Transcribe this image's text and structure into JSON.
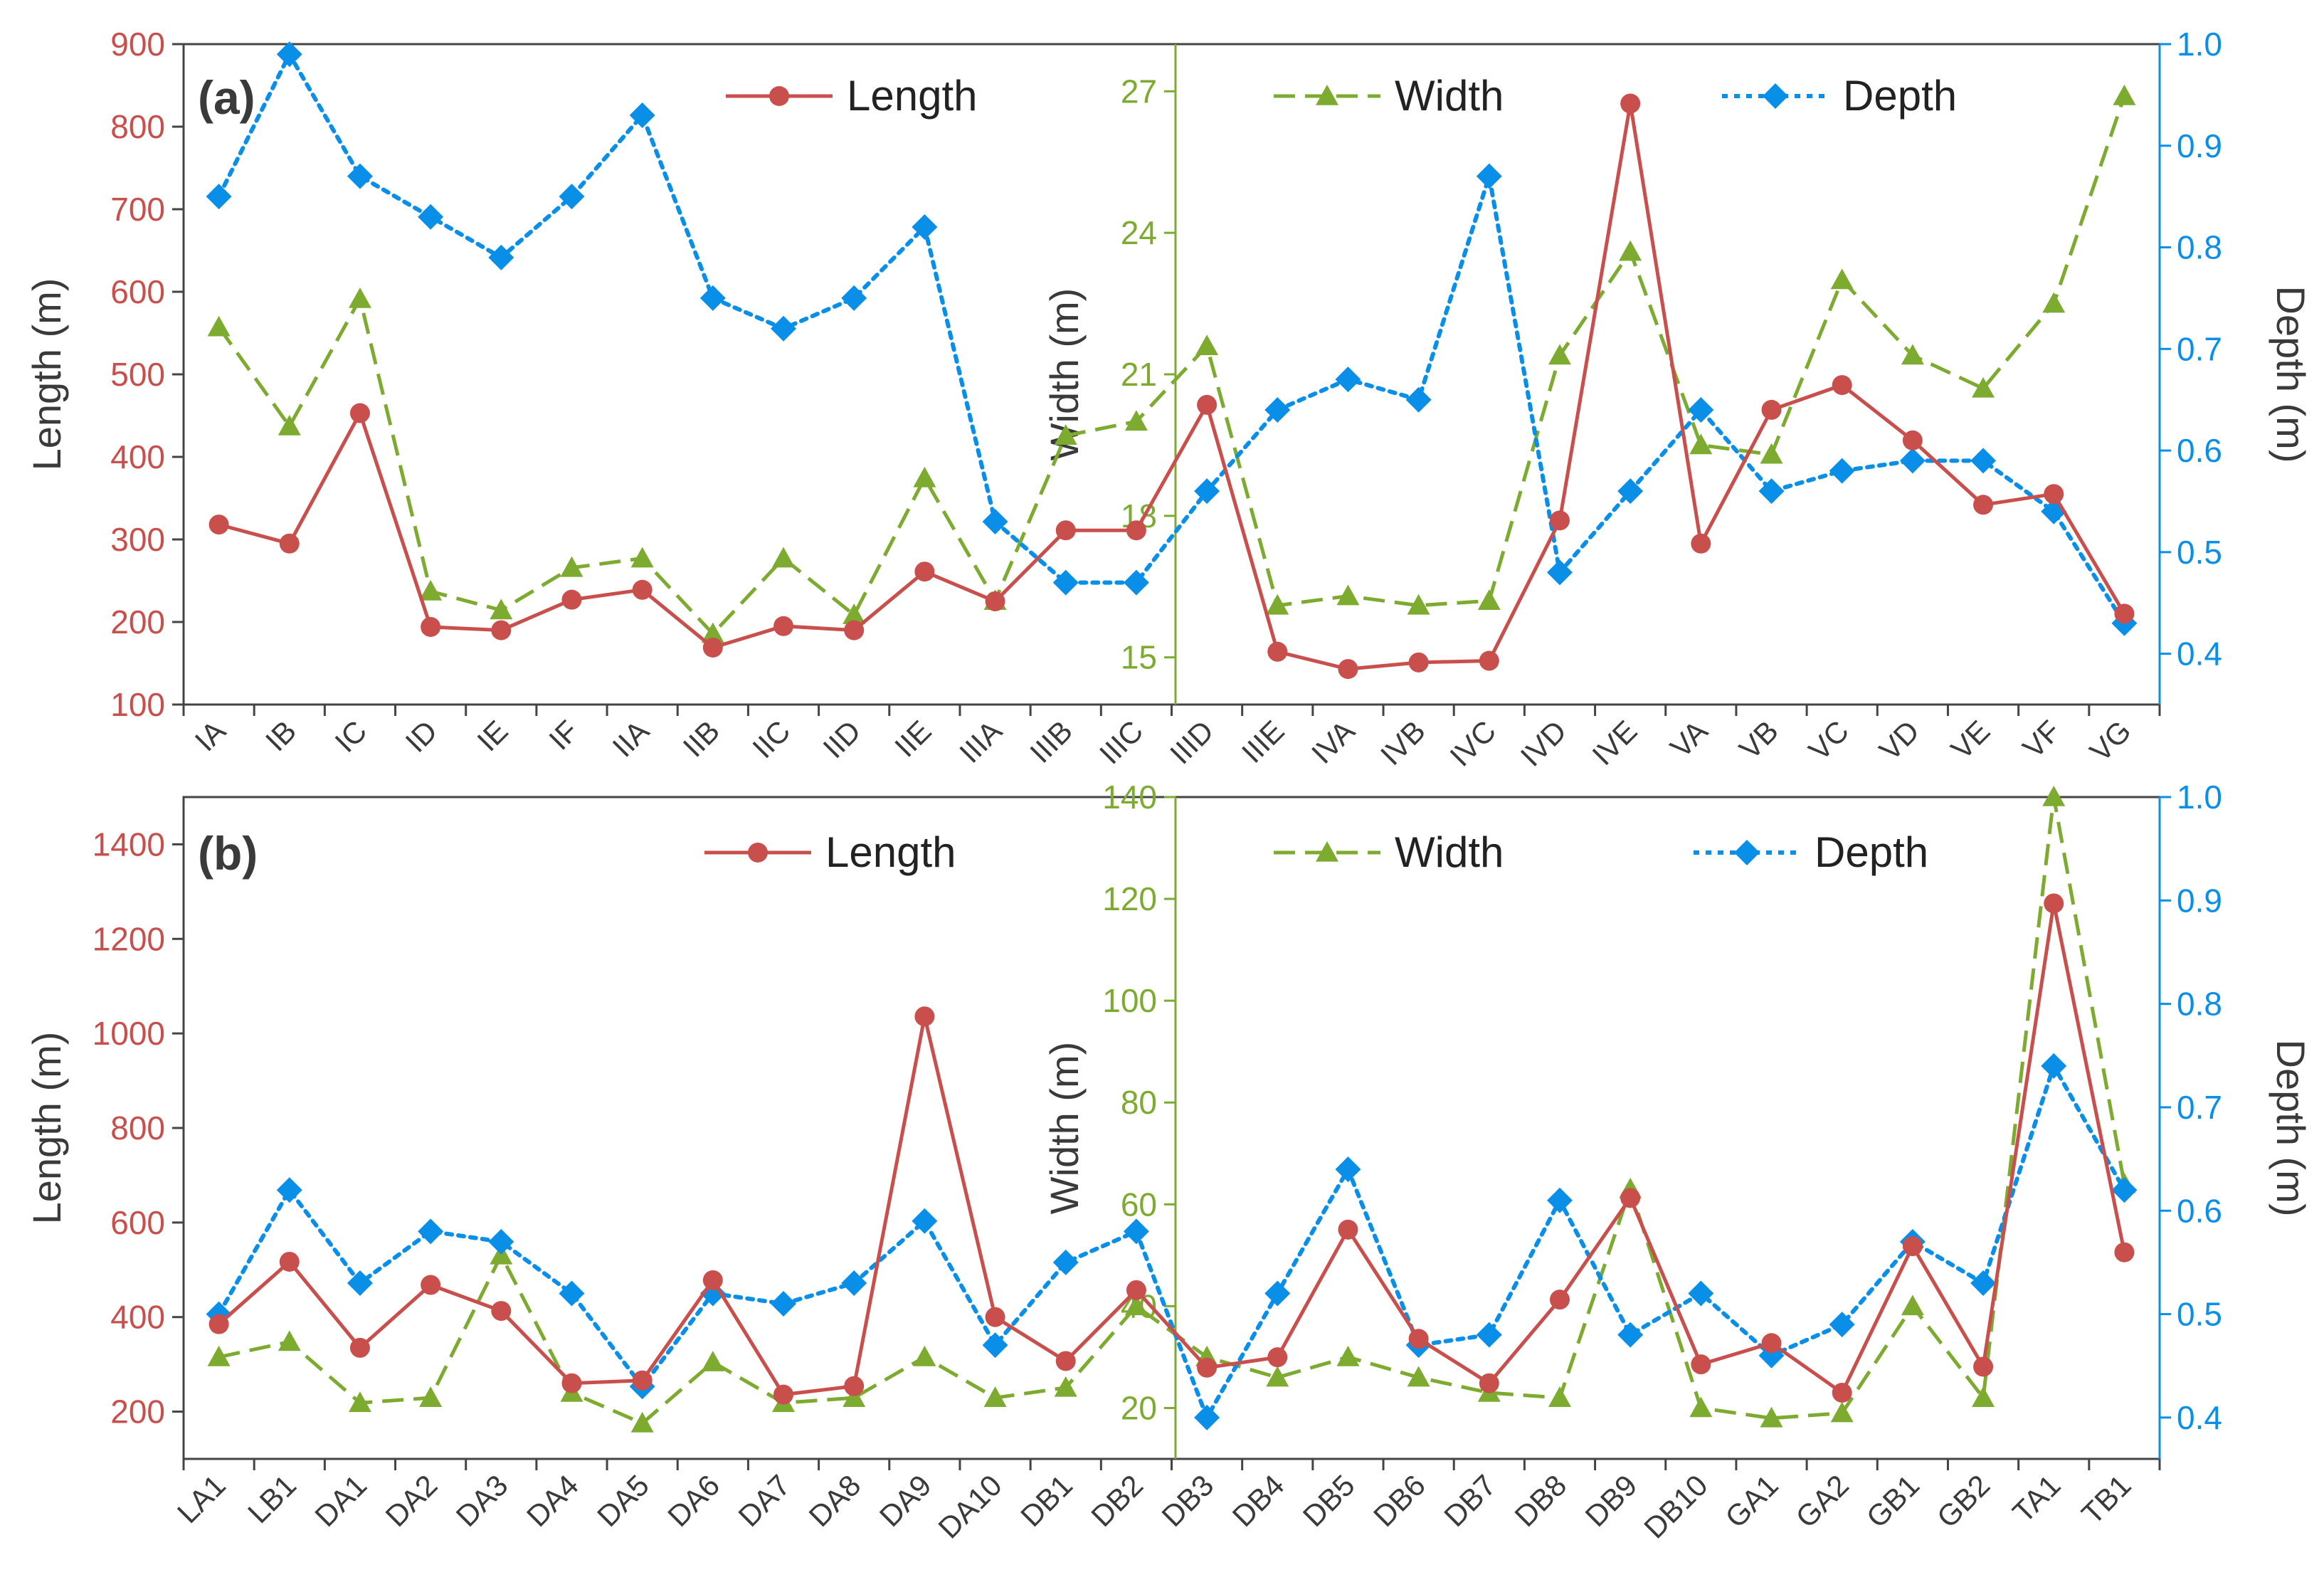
{
  "colors": {
    "length": "#C94F4C",
    "width": "#7CAB2F",
    "depth": "#0A8FE8",
    "axis": "#444444",
    "label": "#3a3a3a"
  },
  "chart_data": [
    {
      "type": "line",
      "panel_label": "(a)",
      "x": [
        "IA",
        "IB",
        "IC",
        "ID",
        "IE",
        "IF",
        "IIA",
        "IIB",
        "IIC",
        "IID",
        "IIE",
        "IIIA",
        "IIIB",
        "IIIC",
        "IIID",
        "IIIE",
        "IVA",
        "IVB",
        "IVC",
        "IVD",
        "IVE",
        "VA",
        "VB",
        "VC",
        "VD",
        "VE",
        "VF",
        "VG"
      ],
      "series": [
        {
          "name": "Length",
          "axis": "left",
          "color": "#C94F4C",
          "style": "solid",
          "marker": "circle",
          "values": [
            318,
            295,
            453,
            194,
            190,
            227,
            239,
            169,
            195,
            190,
            261,
            225,
            311,
            311,
            463,
            164,
            143,
            151,
            153,
            323,
            828,
            295,
            457,
            487,
            420,
            342,
            355,
            210
          ]
        },
        {
          "name": "Width",
          "axis": "middle",
          "color": "#7CAB2F",
          "style": "dashed",
          "marker": "triangle",
          "values": [
            22.0,
            19.9,
            22.6,
            16.4,
            16.0,
            16.9,
            17.1,
            15.5,
            17.1,
            15.9,
            18.8,
            16.2,
            19.7,
            20.0,
            21.6,
            16.1,
            16.3,
            16.1,
            16.2,
            21.4,
            23.6,
            19.5,
            19.3,
            23.0,
            21.4,
            20.7,
            22.5,
            26.9
          ]
        },
        {
          "name": "Depth",
          "axis": "right",
          "color": "#0A8FE8",
          "style": "dotted",
          "marker": "diamond",
          "values": [
            0.85,
            0.99,
            0.87,
            0.83,
            0.79,
            0.85,
            0.93,
            0.75,
            0.72,
            0.75,
            0.82,
            0.53,
            0.47,
            0.47,
            0.56,
            0.64,
            0.67,
            0.65,
            0.87,
            0.48,
            0.56,
            0.64,
            0.56,
            0.58,
            0.59,
            0.59,
            0.54,
            0.43
          ]
        }
      ],
      "axes": {
        "left": {
          "label": "Length (m)",
          "range": [
            100,
            900
          ],
          "ticks": [
            100,
            200,
            300,
            400,
            500,
            600,
            700,
            800,
            900
          ]
        },
        "middle": {
          "label": "Width (m)",
          "range": [
            14,
            28
          ],
          "ticks": [
            15,
            18,
            21,
            24,
            27
          ]
        },
        "right": {
          "label": "Depth (m)",
          "range": [
            0.35,
            1.0
          ],
          "ticks": [
            "0.4",
            "0.5",
            "0.6",
            "0.7",
            "0.8",
            "0.9",
            "1.0"
          ]
        }
      },
      "legend": [
        "Length",
        "Width",
        "Depth"
      ],
      "grid": false
    },
    {
      "type": "line",
      "panel_label": "(b)",
      "x": [
        "LA1",
        "LB1",
        "DA1",
        "DA2",
        "DA3",
        "DA4",
        "DA5",
        "DA6",
        "DA7",
        "DA8",
        "DA9",
        "DA10",
        "DB1",
        "DB2",
        "DB3",
        "DB4",
        "DB5",
        "DB6",
        "DB7",
        "DB8",
        "DB9",
        "DB10",
        "GA1",
        "GA2",
        "GB1",
        "GB2",
        "TA1",
        "TB1"
      ],
      "series": [
        {
          "name": "Length",
          "axis": "left",
          "color": "#C94F4C",
          "style": "solid",
          "marker": "circle",
          "values": [
            385,
            517,
            335,
            468,
            413,
            260,
            266,
            478,
            236,
            254,
            1036,
            400,
            307,
            457,
            293,
            315,
            585,
            354,
            260,
            437,
            652,
            300,
            345,
            240,
            550,
            295,
            1275,
            537
          ]
        },
        {
          "name": "Width",
          "axis": "middle",
          "color": "#7CAB2F",
          "style": "dashed",
          "marker": "triangle",
          "values": [
            30,
            33,
            21,
            22,
            50,
            23,
            17,
            29,
            21,
            22,
            30,
            22,
            24,
            40,
            30,
            26,
            30,
            26,
            23,
            22,
            63,
            20,
            18,
            19,
            40,
            22,
            140,
            64
          ]
        },
        {
          "name": "Depth",
          "axis": "right",
          "color": "#0A8FE8",
          "style": "dotted",
          "marker": "diamond",
          "values": [
            0.5,
            0.62,
            0.53,
            0.58,
            0.57,
            0.52,
            0.43,
            0.52,
            0.51,
            0.53,
            0.59,
            0.47,
            0.55,
            0.58,
            0.4,
            0.52,
            0.64,
            0.47,
            0.48,
            0.61,
            0.48,
            0.52,
            0.46,
            0.49,
            0.57,
            0.53,
            0.74,
            0.62
          ]
        }
      ],
      "axes": {
        "left": {
          "label": "Length (m)",
          "range": [
            100,
            1500
          ],
          "ticks": [
            200,
            400,
            600,
            800,
            1000,
            1200,
            1400
          ]
        },
        "middle": {
          "label": "Width (m)",
          "range": [
            10,
            140
          ],
          "ticks": [
            20,
            40,
            60,
            80,
            100,
            120,
            140
          ]
        },
        "right": {
          "label": "Depth (m)",
          "range": [
            0.36,
            1.0
          ],
          "ticks": [
            "0.4",
            "0.5",
            "0.6",
            "0.7",
            "0.8",
            "0.9",
            "1.0"
          ]
        }
      },
      "legend": [
        "Length",
        "Width",
        "Depth"
      ],
      "grid": false
    }
  ]
}
